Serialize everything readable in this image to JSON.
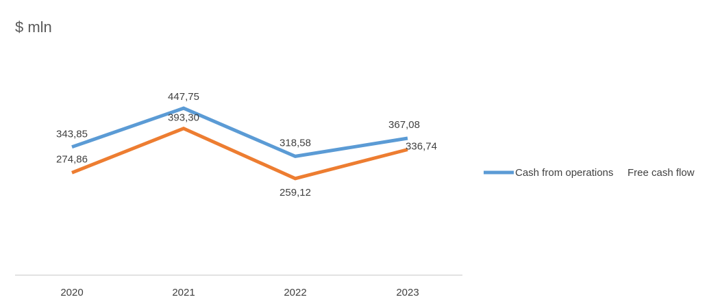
{
  "chart_data": {
    "type": "line",
    "title": "",
    "ylabel": "$ mln",
    "xlabel": "",
    "categories": [
      "2020",
      "2021",
      "2022",
      "2023"
    ],
    "series": [
      {
        "name": "Cash from operations",
        "color": "#5B9BD5",
        "values": [
          343.85,
          447.75,
          318.58,
          367.08
        ],
        "labels": [
          "343,85",
          "447,75",
          "318,58",
          "367,08"
        ]
      },
      {
        "name": "Free cash flow",
        "color": "#ED7D31",
        "values": [
          274.86,
          393.3,
          259.12,
          336.74
        ],
        "labels": [
          "274,86",
          "393,30",
          "259,12",
          "336,74"
        ]
      }
    ],
    "ylim": [
      0,
      530
    ],
    "grid": false,
    "legend_position": "right"
  }
}
